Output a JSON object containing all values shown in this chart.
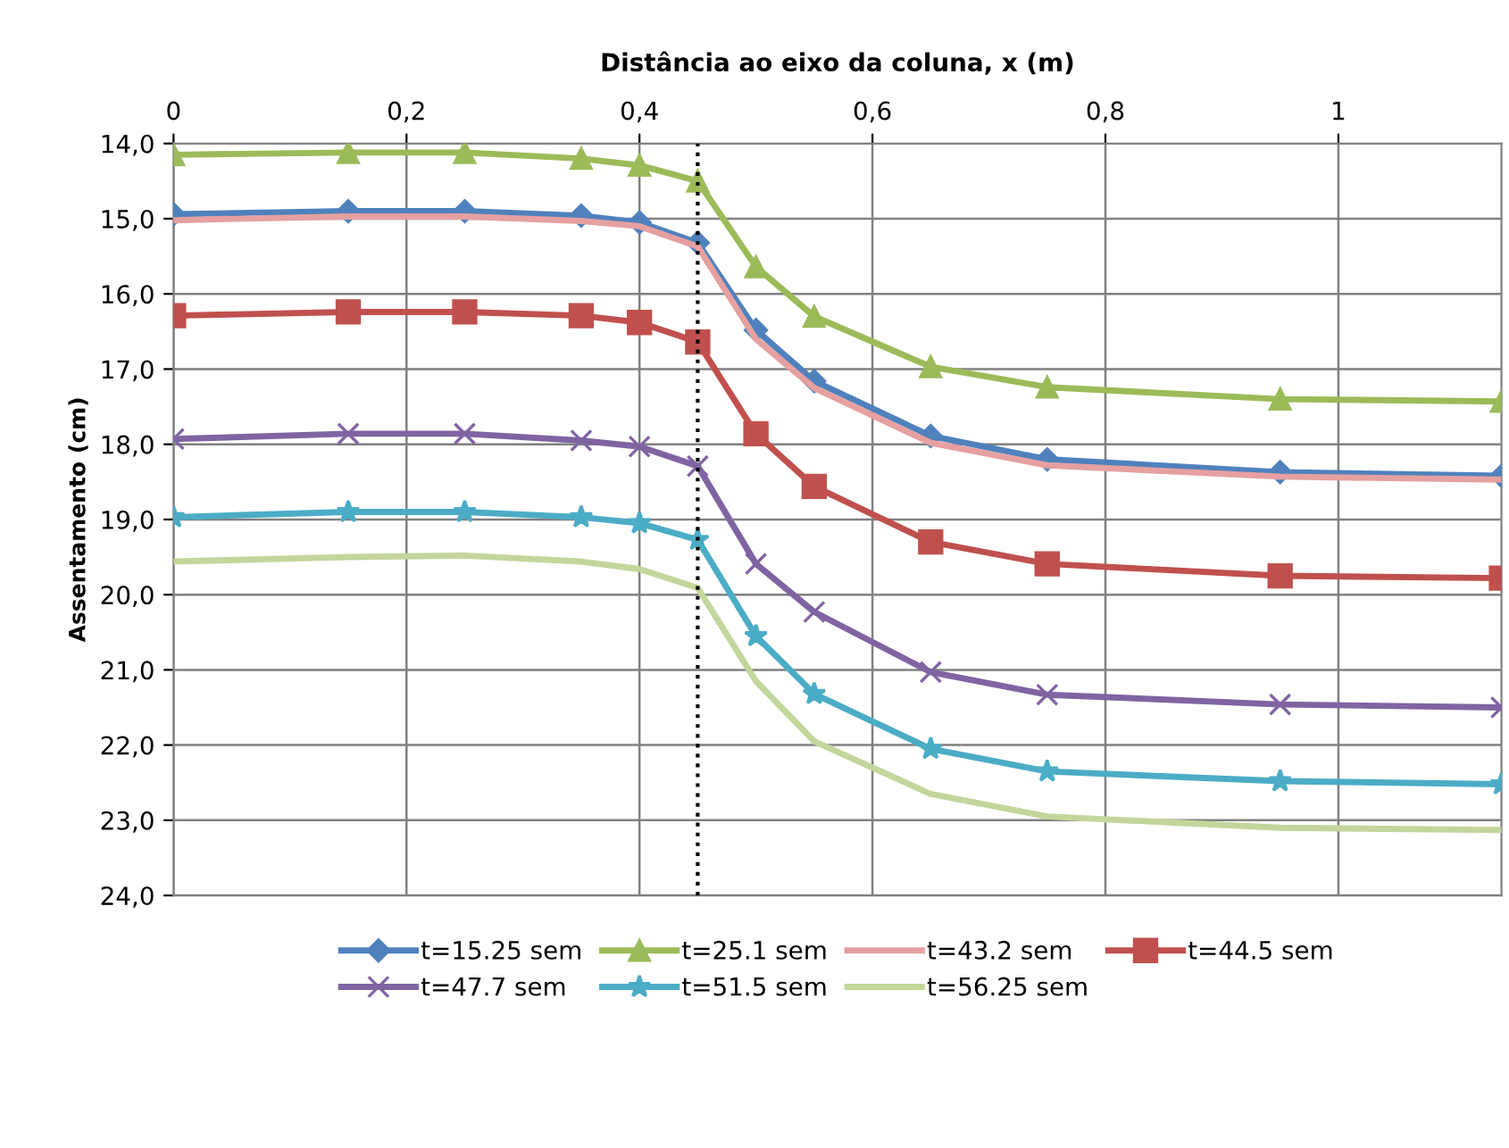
{
  "chart_data": {
    "type": "line",
    "xlabel": "Distância ao eixo da coluna, x (m)",
    "ylabel": "Assentamento (cm)",
    "x": [
      0,
      0.15,
      0.25,
      0.35,
      0.4,
      0.45,
      0.5,
      0.55,
      0.65,
      0.75,
      0.95,
      1.14
    ],
    "xlim": [
      0,
      1.14
    ],
    "xticks": [
      0,
      {
        "value": 0.2,
        "label": "0,2"
      },
      {
        "value": 0.4,
        "label": "0,4"
      },
      {
        "value": 0.6,
        "label": "0,6"
      },
      {
        "value": 0.8,
        "label": "0,8"
      },
      1
    ],
    "ylim": [
      24,
      14
    ],
    "yticks": [
      {
        "value": 14,
        "label": "14,0"
      },
      {
        "value": 15,
        "label": "15,0"
      },
      {
        "value": 16,
        "label": "16,0"
      },
      {
        "value": 17,
        "label": "17,0"
      },
      {
        "value": 18,
        "label": "18,0"
      },
      {
        "value": 19,
        "label": "19,0"
      },
      {
        "value": 20,
        "label": "20,0"
      },
      {
        "value": 21,
        "label": "21,0"
      },
      {
        "value": 22,
        "label": "22,0"
      },
      {
        "value": 23,
        "label": "23,0"
      },
      {
        "value": 24,
        "label": "24,0"
      }
    ],
    "grid": true,
    "legend": "bottom",
    "line_style": "solid",
    "ref_lines": [
      {
        "axis": "x",
        "value": 0.45,
        "label": null,
        "color": "#000000",
        "line_style": "dotted"
      }
    ],
    "series": [
      {
        "name": "t=15.25 sem",
        "color": "#4f81bd",
        "marker": "diamond",
        "values": [
          14.94,
          14.9,
          14.9,
          14.96,
          15.05,
          15.32,
          16.48,
          17.16,
          17.89,
          18.2,
          18.37,
          18.42
        ]
      },
      {
        "name": "t=25.1 sem",
        "color": "#9bbb59",
        "marker": "triangle",
        "values": [
          14.15,
          14.12,
          14.12,
          14.2,
          14.29,
          14.5,
          15.64,
          16.3,
          16.97,
          17.24,
          17.4,
          17.43
        ]
      },
      {
        "name": "t=43.2 sem",
        "color": "#e6a0a0",
        "marker": "none",
        "values": [
          15.02,
          14.97,
          14.97,
          15.03,
          15.1,
          15.37,
          16.6,
          17.25,
          17.98,
          18.28,
          18.43,
          18.47
        ]
      },
      {
        "name": "t=44.5 sem",
        "color": "#c0504d",
        "marker": "square",
        "values": [
          16.29,
          16.24,
          16.24,
          16.29,
          16.38,
          16.64,
          17.86,
          18.56,
          19.3,
          19.59,
          19.75,
          19.78
        ]
      },
      {
        "name": "t=47.7 sem",
        "color": "#8064a2",
        "marker": "cross",
        "values": [
          17.93,
          17.86,
          17.86,
          17.95,
          18.03,
          18.29,
          19.59,
          20.23,
          21.03,
          21.33,
          21.46,
          21.5
        ]
      },
      {
        "name": "t=51.5 sem",
        "color": "#4bacc6",
        "marker": "star",
        "values": [
          18.97,
          18.9,
          18.9,
          18.97,
          19.05,
          19.27,
          20.55,
          21.32,
          22.05,
          22.35,
          22.48,
          22.52
        ]
      },
      {
        "name": "t=56.25 sem",
        "color": "#c3d69b",
        "marker": "none",
        "values": [
          19.56,
          19.5,
          19.48,
          19.56,
          19.66,
          19.91,
          21.15,
          21.95,
          22.65,
          22.95,
          23.1,
          23.13
        ]
      }
    ]
  }
}
